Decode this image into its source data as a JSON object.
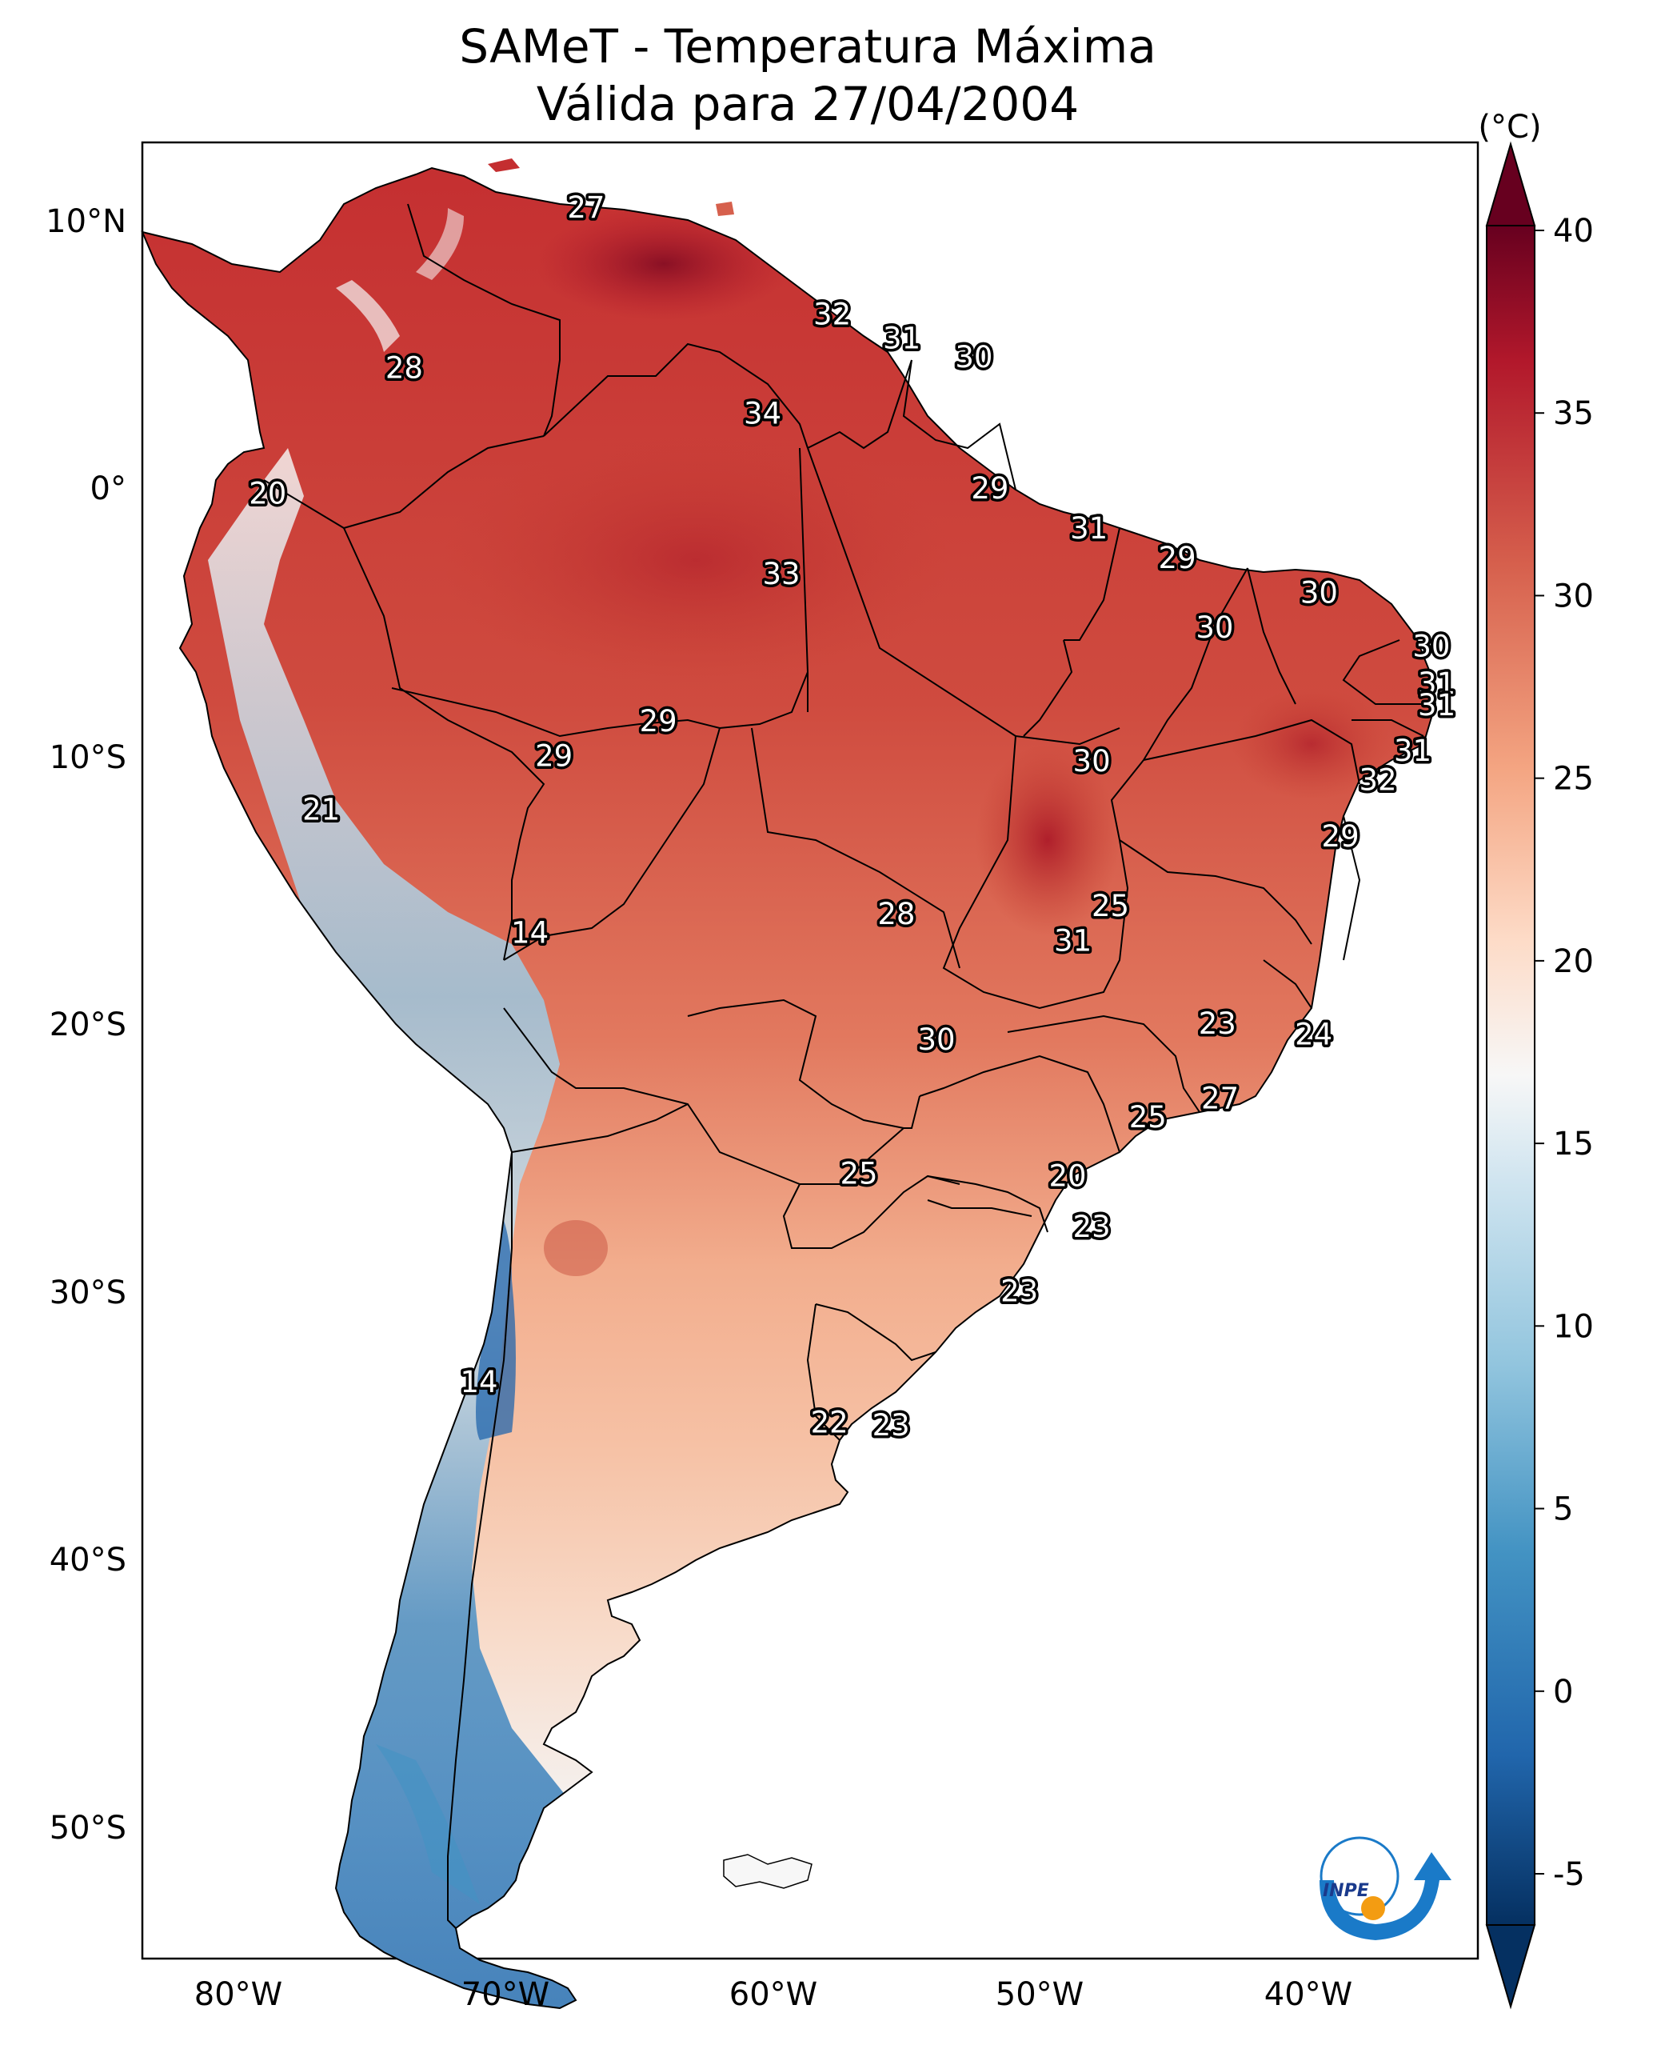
{
  "title": {
    "line1": "SAMeT - Temperatura Máxima",
    "line2": "Válida para 27/04/2004"
  },
  "colorbar": {
    "unit": "(°C)",
    "ticks": [
      "40",
      "35",
      "30",
      "25",
      "20",
      "15",
      "10",
      "5",
      "0",
      "-5"
    ],
    "colormap": "RdBu_r",
    "range": [
      -5,
      40
    ]
  },
  "lat_ticks": [
    "10°N",
    "0°",
    "10°S",
    "20°S",
    "30°S",
    "40°S",
    "50°S"
  ],
  "lon_ticks": [
    "80°W",
    "70°W",
    "60°W",
    "50°W",
    "40°W"
  ],
  "temperature_labels": [
    {
      "value": "27",
      "lon": -67.0,
      "lat": 10.5
    },
    {
      "value": "32",
      "lon": -57.8,
      "lat": 6.5
    },
    {
      "value": "31",
      "lon": -55.2,
      "lat": 5.6
    },
    {
      "value": "30",
      "lon": -52.5,
      "lat": 4.9
    },
    {
      "value": "28",
      "lon": -73.8,
      "lat": 4.5
    },
    {
      "value": "34",
      "lon": -60.4,
      "lat": 2.8
    },
    {
      "value": "20",
      "lon": -78.9,
      "lat": -0.2
    },
    {
      "value": "29",
      "lon": -51.9,
      "lat": 0.0
    },
    {
      "value": "31",
      "lon": -48.2,
      "lat": -1.5
    },
    {
      "value": "29",
      "lon": -44.9,
      "lat": -2.6
    },
    {
      "value": "33",
      "lon": -59.7,
      "lat": -3.2
    },
    {
      "value": "30",
      "lon": -39.6,
      "lat": -3.9
    },
    {
      "value": "30",
      "lon": -43.5,
      "lat": -5.2
    },
    {
      "value": "30",
      "lon": -35.4,
      "lat": -5.9
    },
    {
      "value": "31",
      "lon": -35.2,
      "lat": -7.3
    },
    {
      "value": "31",
      "lon": -35.2,
      "lat": -8.1
    },
    {
      "value": "29",
      "lon": -64.3,
      "lat": -8.7
    },
    {
      "value": "29",
      "lon": -68.2,
      "lat": -10.0
    },
    {
      "value": "31",
      "lon": -36.1,
      "lat": -9.8
    },
    {
      "value": "30",
      "lon": -48.1,
      "lat": -10.2
    },
    {
      "value": "32",
      "lon": -37.4,
      "lat": -10.9
    },
    {
      "value": "21",
      "lon": -76.9,
      "lat": -12.0
    },
    {
      "value": "29",
      "lon": -38.8,
      "lat": -13.0
    },
    {
      "value": "25",
      "lon": -47.4,
      "lat": -15.6
    },
    {
      "value": "28",
      "lon": -55.4,
      "lat": -15.9
    },
    {
      "value": "14",
      "lon": -69.1,
      "lat": -16.6
    },
    {
      "value": "31",
      "lon": -48.8,
      "lat": -16.9
    },
    {
      "value": "23",
      "lon": -43.4,
      "lat": -20.0
    },
    {
      "value": "24",
      "lon": -39.8,
      "lat": -20.4
    },
    {
      "value": "30",
      "lon": -53.9,
      "lat": -20.6
    },
    {
      "value": "27",
      "lon": -43.3,
      "lat": -22.8
    },
    {
      "value": "25",
      "lon": -46.0,
      "lat": -23.5
    },
    {
      "value": "25",
      "lon": -56.8,
      "lat": -25.6
    },
    {
      "value": "20",
      "lon": -49.0,
      "lat": -25.7
    },
    {
      "value": "23",
      "lon": -48.1,
      "lat": -27.6
    },
    {
      "value": "23",
      "lon": -50.8,
      "lat": -30.0
    },
    {
      "value": "14",
      "lon": -71.0,
      "lat": -33.4
    },
    {
      "value": "22",
      "lon": -57.9,
      "lat": -34.9
    },
    {
      "value": "23",
      "lon": -55.6,
      "lat": -35.0
    }
  ],
  "logo": {
    "text": "INPE"
  }
}
